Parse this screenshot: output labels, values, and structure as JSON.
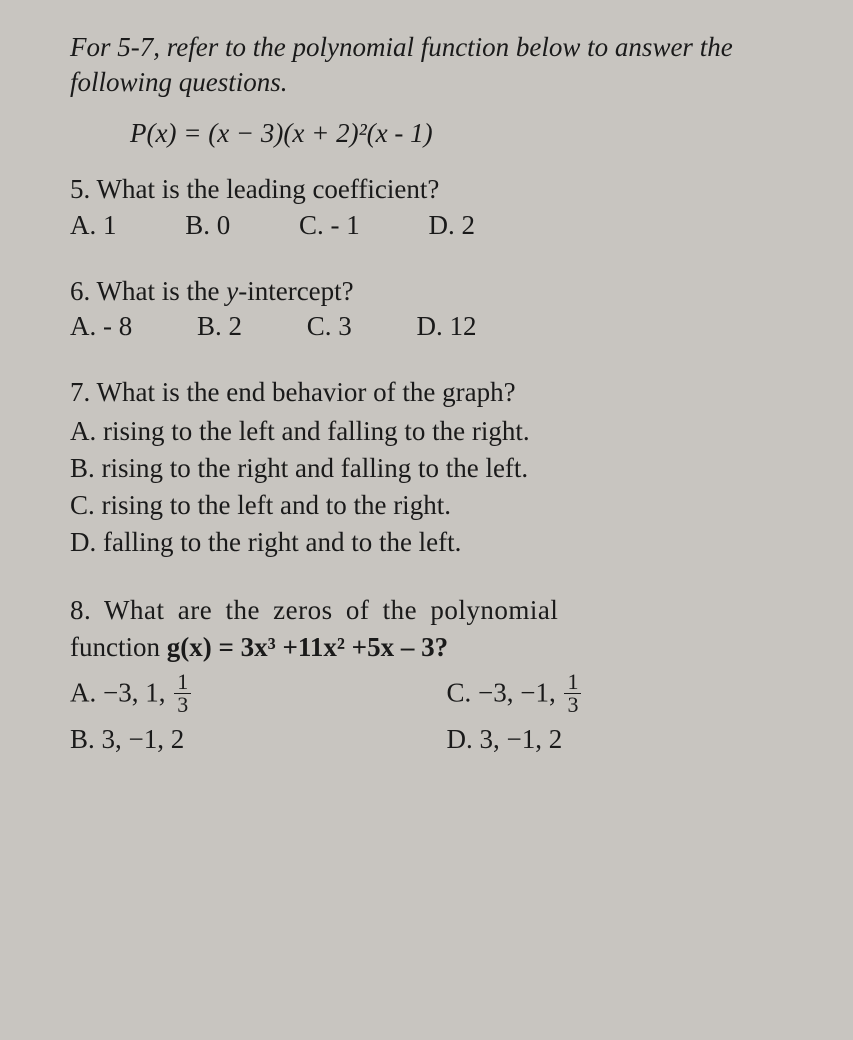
{
  "instruction": "For 5-7, refer to the polynomial function below to answer the following questions.",
  "formula": {
    "lhs": "P(x)",
    "eq": " = ",
    "rhs": "(x − 3)(x + 2)²(x - 1)"
  },
  "q5": {
    "prompt": "5.  What is the leading coefficient?",
    "options": {
      "A": "A. 1",
      "B": "B. 0",
      "C": "C. - 1",
      "D": "D. 2"
    }
  },
  "q6": {
    "prompt_prefix": "6.  What is the ",
    "prompt_var": "y",
    "prompt_suffix": "-intercept?",
    "options": {
      "A": "A. - 8",
      "B": "B. 2",
      "C": "C. 3",
      "D": "D.  12"
    }
  },
  "q7": {
    "prompt": "7. What is the end behavior of the graph?",
    "A": "A.  rising to the left and falling to the right.",
    "B": "B.  rising to the right and falling to the left.",
    "C": "C.  rising to the left and to the right.",
    "D": "D.  falling to the right and to the left."
  },
  "q8": {
    "line1": "8.  What  are  the  zeros  of  the  polynomial",
    "line2_prefix": "function ",
    "line2_func": "g(x) = 3x³ +11x² +5x – 3?",
    "A_prefix": "A. −3,  1, ",
    "A_num": "1",
    "A_den": "3",
    "B": "B.   3, −1, 2",
    "C_prefix": "C. −3, −1, ",
    "C_num": "1",
    "C_den": "3",
    "D": "D. 3, −1, 2"
  }
}
